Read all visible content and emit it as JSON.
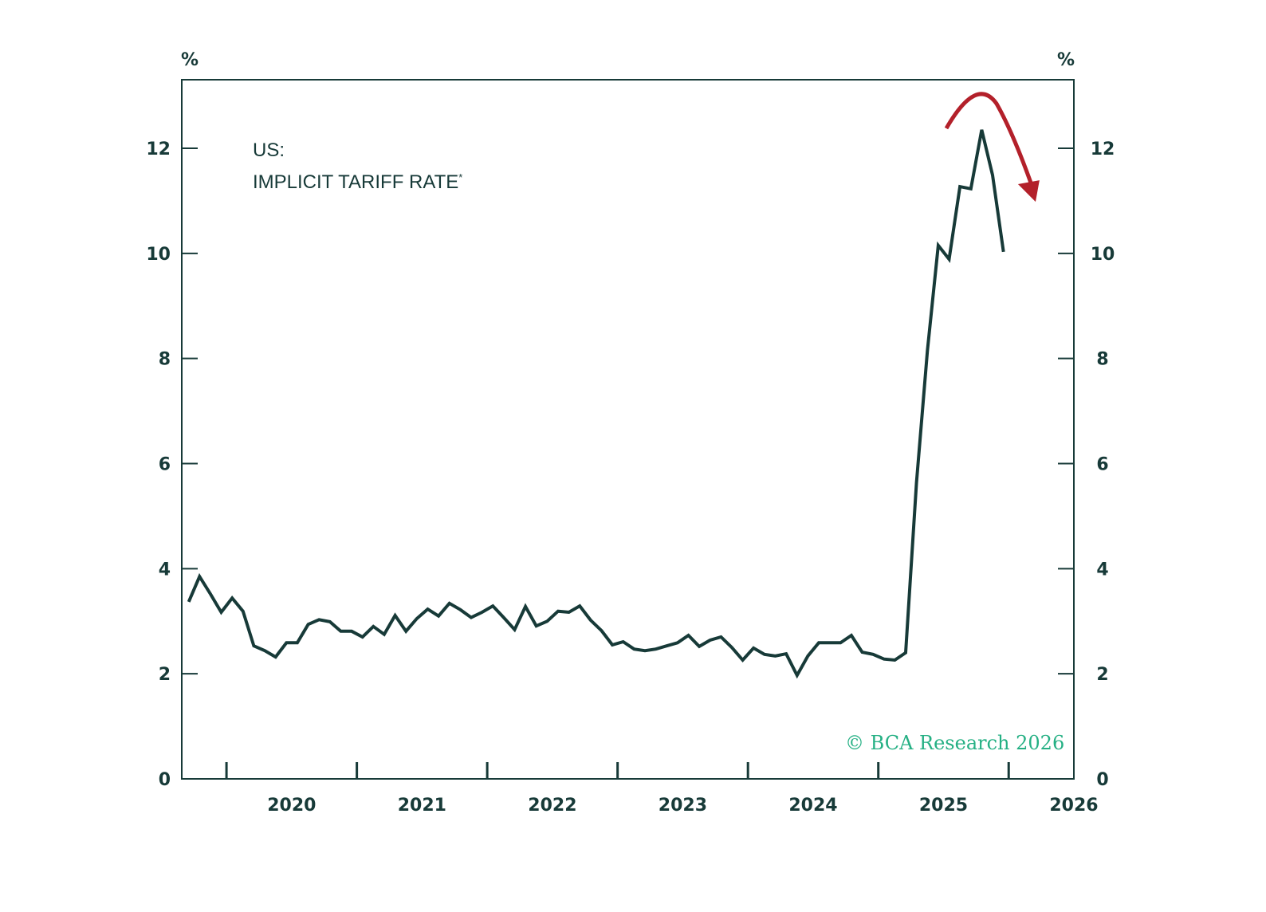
{
  "chart_data": {
    "type": "line",
    "title_line1": "US:",
    "title_line2": "IMPLICIT TARIFF RATE",
    "title_footnote_mark": "*",
    "ylabel_left": "%",
    "ylabel_right": "%",
    "ylim": [
      0,
      13.3
    ],
    "yticks": [
      0,
      2,
      4,
      6,
      8,
      10,
      12
    ],
    "xlim": [
      2019.657,
      2026.5
    ],
    "xticks": [
      2020,
      2021,
      2022,
      2023,
      2024,
      2025,
      2026
    ],
    "xtick_labels": [
      "2020",
      "2021",
      "2022",
      "2023",
      "2024",
      "2025",
      "2026"
    ],
    "x_start": 2019.71,
    "x_step_years": 0.08333,
    "series": [
      {
        "name": "US Implicit Tariff Rate",
        "color": "#173a38",
        "values": [
          3.37,
          3.85,
          3.52,
          3.17,
          3.44,
          3.19,
          2.53,
          2.44,
          2.32,
          2.59,
          2.59,
          2.94,
          3.03,
          2.99,
          2.81,
          2.81,
          2.7,
          2.9,
          2.75,
          3.11,
          2.81,
          3.05,
          3.23,
          3.1,
          3.34,
          3.22,
          3.07,
          3.17,
          3.29,
          3.07,
          2.84,
          3.28,
          2.91,
          3.0,
          3.19,
          3.17,
          3.29,
          3.02,
          2.82,
          2.55,
          2.61,
          2.47,
          2.44,
          2.47,
          2.53,
          2.59,
          2.73,
          2.52,
          2.64,
          2.7,
          2.5,
          2.26,
          2.49,
          2.37,
          2.34,
          2.38,
          1.97,
          2.34,
          2.59,
          2.59,
          2.59,
          2.73,
          2.41,
          2.37,
          2.28,
          2.26,
          2.4,
          5.64,
          8.15,
          10.15,
          9.89,
          11.27,
          11.23,
          12.35,
          11.49,
          10.03
        ]
      }
    ],
    "annotation": {
      "type": "curved-arrow-down",
      "color": "#b3202a"
    },
    "copyright": "© BCA Research 2026",
    "copyright_color": "#25b084"
  }
}
